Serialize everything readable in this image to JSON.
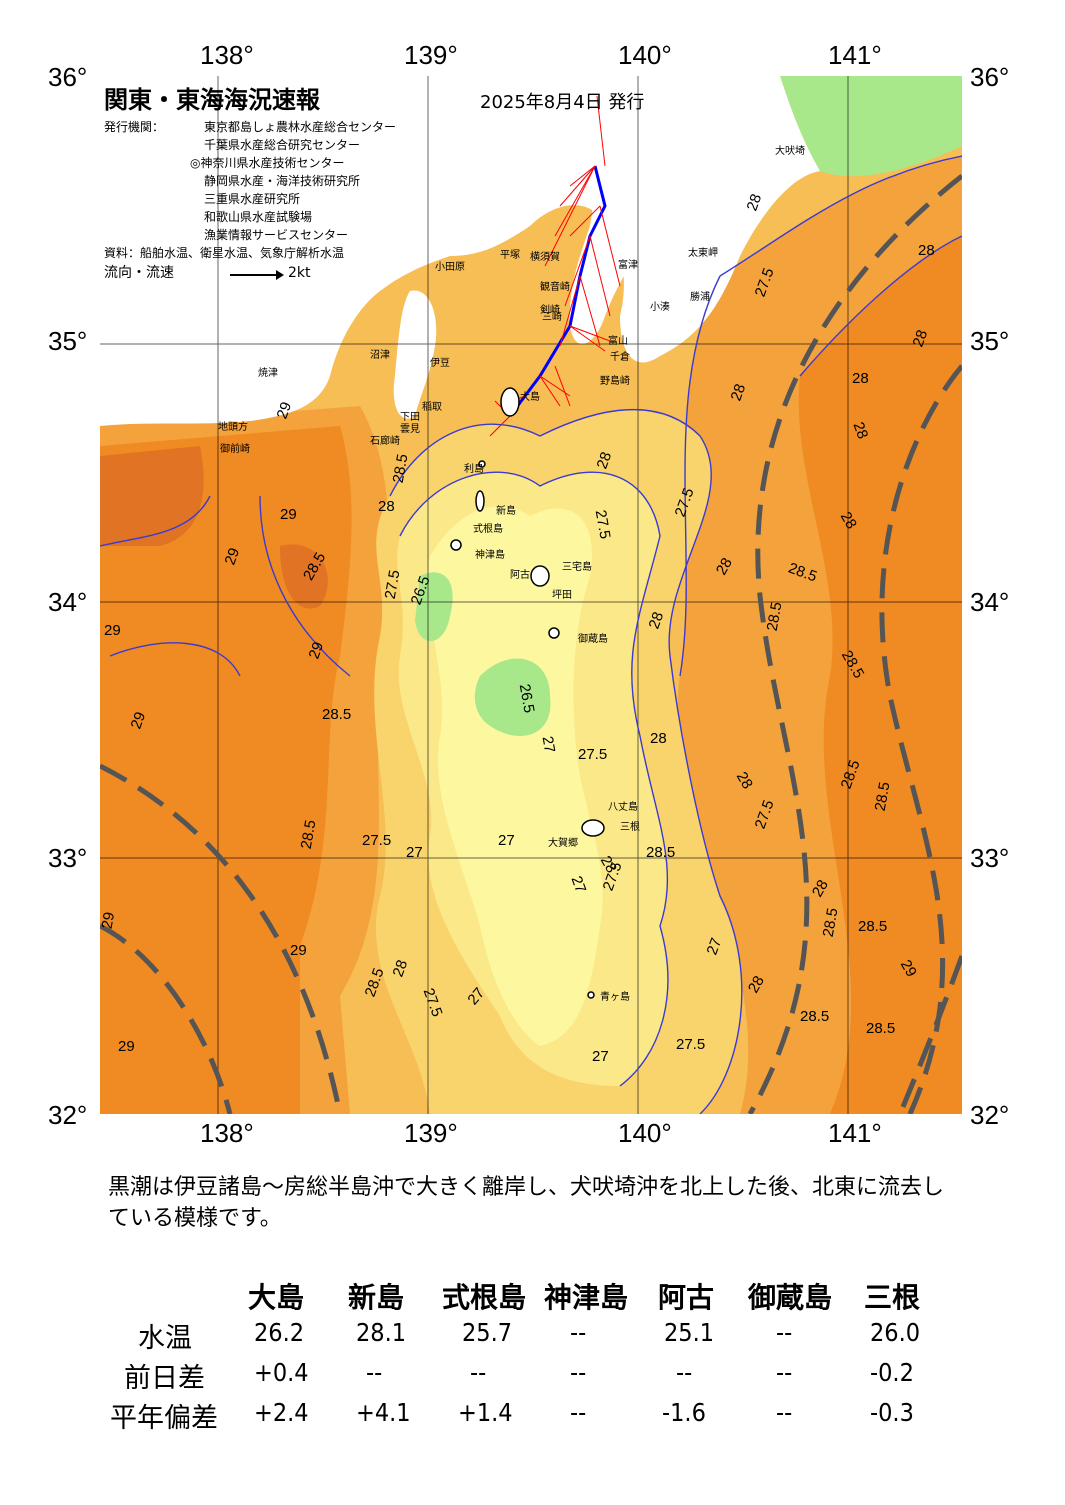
{
  "header": {
    "title": "関東・東海海況速報",
    "date": "2025年8月4日 発行",
    "issuers_label": "発行機関：",
    "issuers": [
      "東京都島しょ農林水産総合センター",
      "千葉県水産総合研究センター",
      "◎神奈川県水産技術センター",
      "静岡県水産・海洋技術研究所",
      "三重県水産研究所",
      "和歌山県水産試験場",
      "漁業情報サービスセンター"
    ],
    "source": "資料：船舶水温、衛星水温、気象庁解析水温",
    "flow_label": "流向・流速",
    "flow_scale": "2kt"
  },
  "axes": {
    "lon_ticks": [
      "138°",
      "139°",
      "140°",
      "141°"
    ],
    "lat_ticks": [
      "36°",
      "35°",
      "34°",
      "33°",
      "32°"
    ]
  },
  "places": [
    {
      "name": "大吠埼"
    },
    {
      "name": "太東岬"
    },
    {
      "name": "小湊"
    },
    {
      "name": "勝浦"
    },
    {
      "name": "千倉"
    },
    {
      "name": "野島崎"
    },
    {
      "name": "富津"
    },
    {
      "name": "横須賀"
    },
    {
      "name": "平塚"
    },
    {
      "name": "小田原"
    },
    {
      "name": "観音崎"
    },
    {
      "name": "剣崎"
    },
    {
      "name": "三崎"
    },
    {
      "name": "富山"
    },
    {
      "name": "沼津"
    },
    {
      "name": "伊豆"
    },
    {
      "name": "焼津"
    },
    {
      "name": "稲取"
    },
    {
      "name": "下田"
    },
    {
      "name": "石廊崎"
    },
    {
      "name": "御前崎"
    },
    {
      "name": "地頭方"
    },
    {
      "name": "利島"
    },
    {
      "name": "新島"
    },
    {
      "name": "式根島"
    },
    {
      "name": "神津島"
    },
    {
      "name": "阿古"
    },
    {
      "name": "三宅島"
    },
    {
      "name": "坪田"
    },
    {
      "name": "御蔵島"
    },
    {
      "name": "八丈島"
    },
    {
      "name": "三根"
    },
    {
      "name": "大賀郷"
    },
    {
      "name": "青ヶ島"
    },
    {
      "name": "大島"
    },
    {
      "name": "雲見"
    }
  ],
  "contour_labels": [
    "29",
    "28.5",
    "28",
    "27.5",
    "27",
    "26.5"
  ],
  "summary": "黒潮は伊豆諸島～房総半島沖で大きく離岸し、犬吠埼沖を北上した後、北東に流去している模様です。",
  "table": {
    "columns": [
      "大島",
      "新島",
      "式根島",
      "神津島",
      "阿古",
      "御蔵島",
      "三根"
    ],
    "rows": [
      {
        "label": "水温",
        "values": [
          "26.2",
          "28.1",
          "25.7",
          "--",
          "25.1",
          "--",
          "26.0"
        ]
      },
      {
        "label": "前日差",
        "values": [
          "+0.4",
          "--",
          "--",
          "--",
          "--",
          "--",
          "-0.2"
        ]
      },
      {
        "label": "平年偏差",
        "values": [
          "+2.4",
          "+4.1",
          "+1.4",
          "--",
          "-1.6",
          "--",
          "-0.3"
        ]
      }
    ]
  },
  "colors": {
    "sst_29": "#f08a22",
    "sst_28_5": "#f4a23c",
    "sst_28": "#f7be56",
    "sst_27_5": "#f9d46c",
    "sst_27": "#fbe889",
    "sst_26_5": "#fdf7a0",
    "sst_26": "#a8e88a",
    "sst_30": "#e07424",
    "kuroshio": "#555555",
    "current_arrows": "#ff0000",
    "track": "#0000ff"
  }
}
